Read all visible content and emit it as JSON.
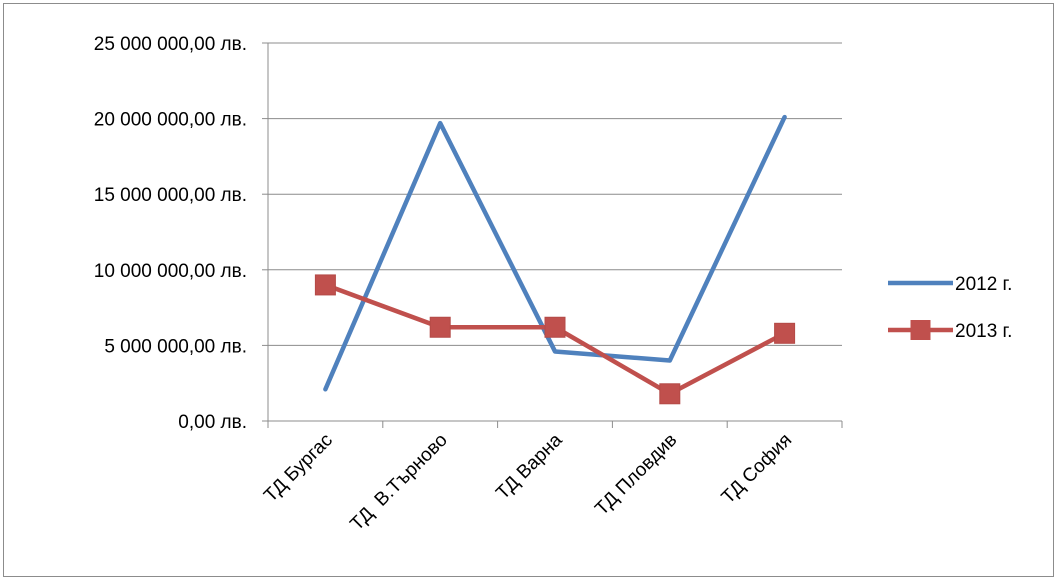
{
  "chart_data": {
    "type": "line",
    "categories": [
      "ТД Бургас",
      "ТД  В.Търново",
      "ТД Варна",
      "ТД Пловдив",
      "ТД София"
    ],
    "series": [
      {
        "name": "2012 г.",
        "values": [
          2100000,
          19700000,
          4600000,
          4000000,
          20100000
        ],
        "color": "#4f81bd",
        "marker": "none"
      },
      {
        "name": "2013 г.",
        "values": [
          9000000,
          6200000,
          6200000,
          1800000,
          5800000
        ],
        "color": "#c0504d",
        "marker": "square"
      }
    ],
    "y_ticks": [
      {
        "value": 0,
        "label": "0,00 лв."
      },
      {
        "value": 5000000,
        "label": "5 000 000,00 лв."
      },
      {
        "value": 10000000,
        "label": "10 000 000,00 лв."
      },
      {
        "value": 15000000,
        "label": "15 000 000,00 лв."
      },
      {
        "value": 20000000,
        "label": "20 000 000,00 лв."
      },
      {
        "value": 25000000,
        "label": "25 000 000,00 лв."
      }
    ],
    "ylim": [
      0,
      25000000
    ],
    "grid": true,
    "legend": "right",
    "title": "",
    "xlabel": "",
    "ylabel": ""
  }
}
